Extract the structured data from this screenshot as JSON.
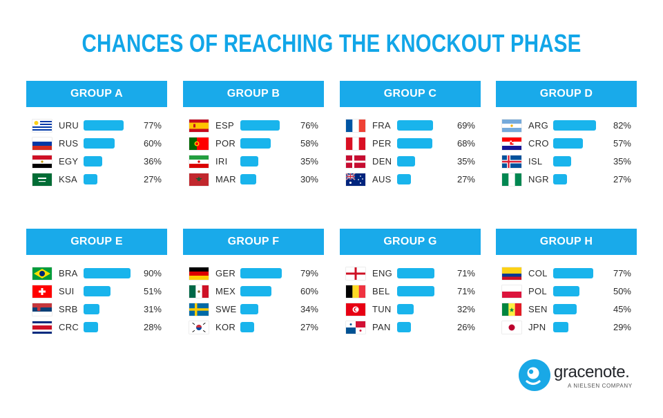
{
  "title": "CHANCES OF REACHING THE KNOCKOUT PHASE",
  "colors": {
    "accent": "#19aaea",
    "bar": "#19b4ec",
    "title": "#12a6e8"
  },
  "logo": {
    "wordmark": "gracenote.",
    "subtitle": "A NIELSEN COMPANY",
    "icon": "gracenote-logo-icon"
  },
  "chart_data": {
    "type": "bar",
    "orientation": "horizontal",
    "title": "CHANCES OF REACHING THE KNOCKOUT PHASE",
    "unit": "%",
    "xlim": [
      0,
      100
    ],
    "groups": [
      {
        "name": "GROUP A",
        "teams": [
          {
            "code": "URU",
            "value": 77,
            "label": "77%",
            "flag": "uruguay-flag-icon"
          },
          {
            "code": "RUS",
            "value": 60,
            "label": "60%",
            "flag": "russia-flag-icon"
          },
          {
            "code": "EGY",
            "value": 36,
            "label": "36%",
            "flag": "egypt-flag-icon"
          },
          {
            "code": "KSA",
            "value": 27,
            "label": "27%",
            "flag": "saudi-arabia-flag-icon"
          }
        ]
      },
      {
        "name": "GROUP B",
        "teams": [
          {
            "code": "ESP",
            "value": 76,
            "label": "76%",
            "flag": "spain-flag-icon"
          },
          {
            "code": "POR",
            "value": 58,
            "label": "58%",
            "flag": "portugal-flag-icon"
          },
          {
            "code": "IRI",
            "value": 35,
            "label": "35%",
            "flag": "iran-flag-icon"
          },
          {
            "code": "MAR",
            "value": 30,
            "label": "30%",
            "flag": "morocco-flag-icon"
          }
        ]
      },
      {
        "name": "GROUP C",
        "teams": [
          {
            "code": "FRA",
            "value": 69,
            "label": "69%",
            "flag": "france-flag-icon"
          },
          {
            "code": "PER",
            "value": 68,
            "label": "68%",
            "flag": "peru-flag-icon"
          },
          {
            "code": "DEN",
            "value": 35,
            "label": "35%",
            "flag": "denmark-flag-icon"
          },
          {
            "code": "AUS",
            "value": 27,
            "label": "27%",
            "flag": "australia-flag-icon"
          }
        ]
      },
      {
        "name": "GROUP D",
        "teams": [
          {
            "code": "ARG",
            "value": 82,
            "label": "82%",
            "flag": "argentina-flag-icon"
          },
          {
            "code": "CRO",
            "value": 57,
            "label": "57%",
            "flag": "croatia-flag-icon"
          },
          {
            "code": "ISL",
            "value": 35,
            "label": "35%",
            "flag": "iceland-flag-icon"
          },
          {
            "code": "NGR",
            "value": 27,
            "label": "27%",
            "flag": "nigeria-flag-icon"
          }
        ]
      },
      {
        "name": "GROUP E",
        "teams": [
          {
            "code": "BRA",
            "value": 90,
            "label": "90%",
            "flag": "brazil-flag-icon"
          },
          {
            "code": "SUI",
            "value": 51,
            "label": "51%",
            "flag": "switzerland-flag-icon"
          },
          {
            "code": "SRB",
            "value": 31,
            "label": "31%",
            "flag": "serbia-flag-icon"
          },
          {
            "code": "CRC",
            "value": 28,
            "label": "28%",
            "flag": "costa-rica-flag-icon"
          }
        ]
      },
      {
        "name": "GROUP F",
        "teams": [
          {
            "code": "GER",
            "value": 79,
            "label": "79%",
            "flag": "germany-flag-icon"
          },
          {
            "code": "MEX",
            "value": 60,
            "label": "60%",
            "flag": "mexico-flag-icon"
          },
          {
            "code": "SWE",
            "value": 34,
            "label": "34%",
            "flag": "sweden-flag-icon"
          },
          {
            "code": "KOR",
            "value": 27,
            "label": "27%",
            "flag": "south-korea-flag-icon"
          }
        ]
      },
      {
        "name": "GROUP G",
        "teams": [
          {
            "code": "ENG",
            "value": 71,
            "label": "71%",
            "flag": "england-flag-icon"
          },
          {
            "code": "BEL",
            "value": 71,
            "label": "71%",
            "flag": "belgium-flag-icon"
          },
          {
            "code": "TUN",
            "value": 32,
            "label": "32%",
            "flag": "tunisia-flag-icon"
          },
          {
            "code": "PAN",
            "value": 26,
            "label": "26%",
            "flag": "panama-flag-icon"
          }
        ]
      },
      {
        "name": "GROUP H",
        "teams": [
          {
            "code": "COL",
            "value": 77,
            "label": "77%",
            "flag": "colombia-flag-icon"
          },
          {
            "code": "POL",
            "value": 50,
            "label": "50%",
            "flag": "poland-flag-icon"
          },
          {
            "code": "SEN",
            "value": 45,
            "label": "45%",
            "flag": "senegal-flag-icon"
          },
          {
            "code": "JPN",
            "value": 29,
            "label": "29%",
            "flag": "japan-flag-icon"
          }
        ]
      }
    ]
  }
}
